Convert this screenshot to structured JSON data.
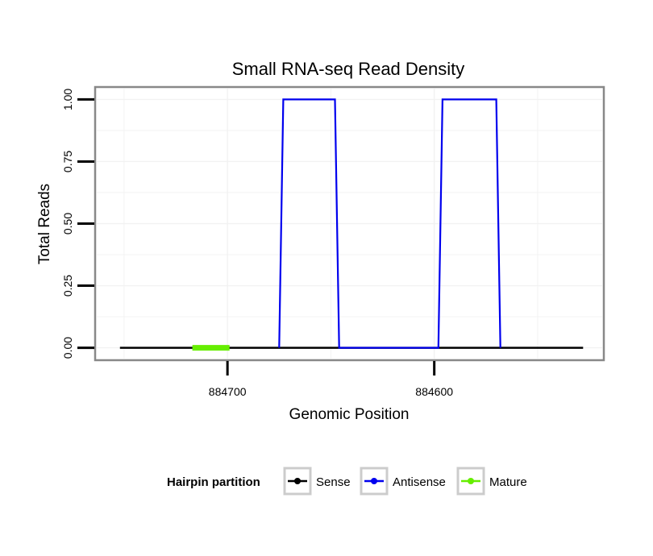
{
  "chart_data": {
    "type": "line",
    "title": "Small RNA-seq Read Density",
    "xlabel": "Genomic Position",
    "ylabel": "Total Reads",
    "x_reversed": true,
    "xlim": [
      884764,
      884518
    ],
    "ylim": [
      -0.05,
      1.05
    ],
    "x_ticks": [
      884700,
      884600
    ],
    "x_tick_labels": [
      "884700",
      "884600"
    ],
    "y_ticks": [
      0,
      0.25,
      0.5,
      0.75,
      1.0
    ],
    "y_tick_labels": [
      "0.00",
      "0.25",
      "0.50",
      "0.75",
      "1.00"
    ],
    "grid": true,
    "series": [
      {
        "name": "Sense",
        "color": "#000000",
        "x": [
          884752,
          884528
        ],
        "y": [
          0,
          0
        ]
      },
      {
        "name": "Antisense",
        "color": "#0000ee",
        "x": [
          884675,
          884673,
          884648,
          884646,
          884598,
          884596,
          884570,
          884568
        ],
        "y": [
          0,
          1,
          1,
          0,
          0,
          1,
          1,
          0
        ]
      },
      {
        "name": "Mature",
        "color": "#66ee00",
        "x": [
          884717,
          884699
        ],
        "y": [
          0,
          0
        ]
      }
    ],
    "legend": {
      "title": "Hairpin partition",
      "position": "bottom",
      "items": [
        {
          "label": "Sense",
          "color": "#000000"
        },
        {
          "label": "Antisense",
          "color": "#0000ee"
        },
        {
          "label": "Mature",
          "color": "#66ee00"
        }
      ]
    }
  }
}
